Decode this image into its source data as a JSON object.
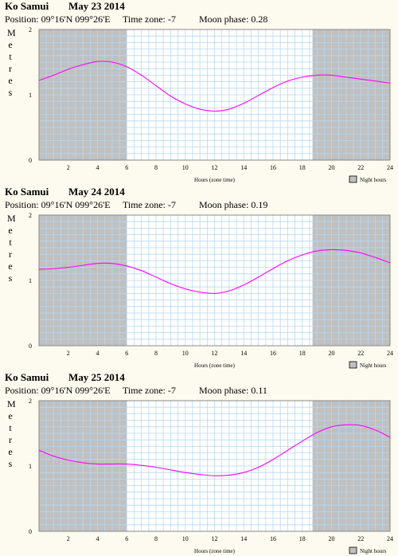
{
  "charts": [
    {
      "location": "Ko Samui",
      "date": "May 23 2014",
      "position": "Position: 09°16'N 099°26'E",
      "timezone": "Time zone: -7",
      "moon": "Moon phase: 0.28"
    },
    {
      "location": "Ko Samui",
      "date": "May 24 2014",
      "position": "Position: 09°16'N 099°26'E",
      "timezone": "Time zone: -7",
      "moon": "Moon phase: 0.19"
    },
    {
      "location": "Ko Samui",
      "date": "May 25 2014",
      "position": "Position: 09°16'N 099°26'E",
      "timezone": "Time zone: -7",
      "moon": "Moon phase: 0.11"
    }
  ],
  "ylabel_letters": [
    "M",
    "e",
    "t",
    "r",
    "e",
    "s"
  ],
  "xlabel": "Hours (zone time)",
  "legend_label": "Night hours",
  "colors": {
    "curve": "#ff00ff",
    "night": "#c0c0c0",
    "grid": "#b8d8f0",
    "plot_bg": "#ffffff"
  },
  "chart_data": [
    {
      "type": "line",
      "title": "Ko Samui May 23 2014",
      "xlabel": "Hours (zone time)",
      "ylabel": "Metres",
      "xlim": [
        0,
        24
      ],
      "ylim": [
        0,
        2
      ],
      "x_ticks": [
        2,
        4,
        6,
        8,
        10,
        12,
        14,
        16,
        18,
        20,
        22,
        24
      ],
      "y_ticks": [
        0,
        1,
        2
      ],
      "night_hours": [
        [
          0,
          6
        ],
        [
          18.7,
          24
        ]
      ],
      "series": [
        {
          "x": [
            0,
            1,
            2,
            3,
            4,
            5,
            6,
            7,
            8,
            9,
            10,
            11,
            12,
            13,
            14,
            15,
            16,
            17,
            18,
            19,
            20,
            21,
            22,
            23,
            24
          ],
          "y": [
            1.22,
            1.3,
            1.39,
            1.46,
            1.51,
            1.5,
            1.43,
            1.3,
            1.14,
            0.98,
            0.86,
            0.78,
            0.75,
            0.78,
            0.87,
            0.99,
            1.11,
            1.21,
            1.27,
            1.3,
            1.3,
            1.27,
            1.24,
            1.21,
            1.18
          ]
        }
      ]
    },
    {
      "type": "line",
      "title": "Ko Samui May 24 2014",
      "xlabel": "Hours (zone time)",
      "ylabel": "Metres",
      "xlim": [
        0,
        24
      ],
      "ylim": [
        0,
        2
      ],
      "x_ticks": [
        2,
        4,
        6,
        8,
        10,
        12,
        14,
        16,
        18,
        20,
        22,
        24
      ],
      "y_ticks": [
        0,
        1,
        2
      ],
      "night_hours": [
        [
          0,
          6
        ],
        [
          18.7,
          24
        ]
      ],
      "series": [
        {
          "x": [
            0,
            1,
            2,
            3,
            4,
            5,
            6,
            7,
            8,
            9,
            10,
            11,
            12,
            13,
            14,
            15,
            16,
            17,
            18,
            19,
            20,
            21,
            22,
            23,
            24
          ],
          "y": [
            1.17,
            1.18,
            1.2,
            1.23,
            1.26,
            1.26,
            1.22,
            1.15,
            1.05,
            0.95,
            0.87,
            0.82,
            0.8,
            0.84,
            0.93,
            1.05,
            1.18,
            1.3,
            1.39,
            1.45,
            1.47,
            1.46,
            1.42,
            1.35,
            1.27
          ]
        }
      ]
    },
    {
      "type": "line",
      "title": "Ko Samui May 25 2014",
      "xlabel": "Hours (zone time)",
      "ylabel": "Metres",
      "xlim": [
        0,
        24
      ],
      "ylim": [
        0,
        2
      ],
      "x_ticks": [
        2,
        4,
        6,
        8,
        10,
        12,
        14,
        16,
        18,
        20,
        22,
        24
      ],
      "y_ticks": [
        0,
        1,
        2
      ],
      "night_hours": [
        [
          0,
          6
        ],
        [
          18.7,
          24
        ]
      ],
      "series": [
        {
          "x": [
            0,
            1,
            2,
            3,
            4,
            5,
            6,
            7,
            8,
            9,
            10,
            11,
            12,
            13,
            14,
            15,
            16,
            17,
            18,
            19,
            20,
            21,
            22,
            23,
            24
          ],
          "y": [
            1.24,
            1.15,
            1.09,
            1.05,
            1.03,
            1.03,
            1.03,
            1.01,
            0.98,
            0.94,
            0.9,
            0.87,
            0.85,
            0.86,
            0.9,
            0.98,
            1.1,
            1.24,
            1.38,
            1.51,
            1.6,
            1.63,
            1.62,
            1.55,
            1.44
          ]
        }
      ]
    }
  ]
}
